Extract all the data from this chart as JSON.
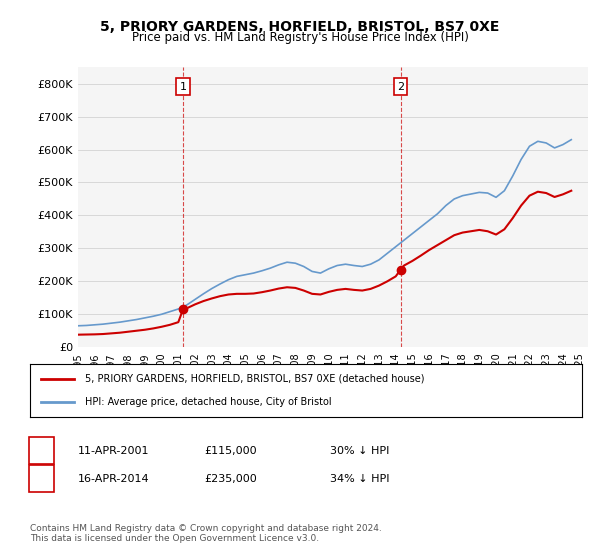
{
  "title": "5, PRIORY GARDENS, HORFIELD, BRISTOL, BS7 0XE",
  "subtitle": "Price paid vs. HM Land Registry's House Price Index (HPI)",
  "legend_label_red": "5, PRIORY GARDENS, HORFIELD, BRISTOL, BS7 0XE (detached house)",
  "legend_label_blue": "HPI: Average price, detached house, City of Bristol",
  "annotation1_label": "1",
  "annotation1_date": "11-APR-2001",
  "annotation1_price": "£115,000",
  "annotation1_hpi": "30% ↓ HPI",
  "annotation2_label": "2",
  "annotation2_date": "16-APR-2014",
  "annotation2_price": "£235,000",
  "annotation2_hpi": "34% ↓ HPI",
  "footer": "Contains HM Land Registry data © Crown copyright and database right 2024.\nThis data is licensed under the Open Government Licence v3.0.",
  "ylim": [
    0,
    850000
  ],
  "yticks": [
    0,
    100000,
    200000,
    300000,
    400000,
    500000,
    600000,
    700000,
    800000
  ],
  "red_color": "#cc0000",
  "blue_color": "#6699cc",
  "annotation_color": "#cc0000",
  "bg_color": "#f5f5f5",
  "purchase1_x": 2001.28,
  "purchase1_y": 115000,
  "purchase2_x": 2014.29,
  "purchase2_y": 235000,
  "hpi_years": [
    1995,
    1995.5,
    1996,
    1996.5,
    1997,
    1997.5,
    1998,
    1998.5,
    1999,
    1999.5,
    2000,
    2000.5,
    2001,
    2001.5,
    2002,
    2002.5,
    2003,
    2003.5,
    2004,
    2004.5,
    2005,
    2005.5,
    2006,
    2006.5,
    2007,
    2007.5,
    2008,
    2008.5,
    2009,
    2009.5,
    2010,
    2010.5,
    2011,
    2011.5,
    2012,
    2012.5,
    2013,
    2013.5,
    2014,
    2014.5,
    2015,
    2015.5,
    2016,
    2016.5,
    2017,
    2017.5,
    2018,
    2018.5,
    2019,
    2019.5,
    2020,
    2020.5,
    2021,
    2021.5,
    2022,
    2022.5,
    2023,
    2023.5,
    2024,
    2024.5
  ],
  "hpi_values": [
    65000,
    66000,
    68000,
    70000,
    73000,
    76000,
    80000,
    84000,
    89000,
    94000,
    100000,
    108000,
    116000,
    128000,
    145000,
    162000,
    178000,
    192000,
    205000,
    215000,
    220000,
    225000,
    232000,
    240000,
    250000,
    258000,
    255000,
    245000,
    230000,
    225000,
    238000,
    248000,
    252000,
    248000,
    245000,
    252000,
    265000,
    285000,
    305000,
    325000,
    345000,
    365000,
    385000,
    405000,
    430000,
    450000,
    460000,
    465000,
    470000,
    468000,
    455000,
    475000,
    520000,
    570000,
    610000,
    625000,
    620000,
    605000,
    615000,
    630000
  ],
  "red_years": [
    1995,
    1995.5,
    1996,
    1996.5,
    1997,
    1997.5,
    1998,
    1998.5,
    1999,
    1999.5,
    2000,
    2000.5,
    2001,
    2001.28,
    2001.28,
    2001.5,
    2002,
    2002.5,
    2003,
    2003.5,
    2004,
    2004.5,
    2005,
    2005.5,
    2006,
    2006.5,
    2007,
    2007.5,
    2008,
    2008.5,
    2009,
    2009.5,
    2010,
    2010.5,
    2011,
    2011.5,
    2012,
    2012.5,
    2013,
    2013.5,
    2014,
    2014.29,
    2014.29,
    2014.5,
    2015,
    2015.5,
    2016,
    2016.5,
    2017,
    2017.5,
    2018,
    2018.5,
    2019,
    2019.5,
    2020,
    2020.5,
    2021,
    2021.5,
    2022,
    2022.5,
    2023,
    2023.5,
    2024,
    2024.5
  ],
  "red_values": [
    38000,
    38500,
    39000,
    40000,
    42000,
    44000,
    47000,
    50000,
    53000,
    57000,
    62000,
    68000,
    76000,
    115000,
    115000,
    118000,
    130000,
    140000,
    148000,
    155000,
    160000,
    162000,
    162000,
    163000,
    167000,
    172000,
    178000,
    182000,
    180000,
    172000,
    162000,
    160000,
    168000,
    174000,
    177000,
    174000,
    172000,
    177000,
    187000,
    200000,
    215000,
    235000,
    235000,
    248000,
    262000,
    278000,
    295000,
    310000,
    325000,
    340000,
    348000,
    352000,
    356000,
    352000,
    342000,
    358000,
    392000,
    430000,
    460000,
    472000,
    468000,
    456000,
    464000,
    475000
  ],
  "xtick_years": [
    1995,
    1996,
    1997,
    1998,
    1999,
    2000,
    2001,
    2002,
    2003,
    2004,
    2005,
    2006,
    2007,
    2008,
    2009,
    2010,
    2011,
    2012,
    2013,
    2014,
    2015,
    2016,
    2017,
    2018,
    2019,
    2020,
    2021,
    2022,
    2023,
    2024,
    2025
  ]
}
